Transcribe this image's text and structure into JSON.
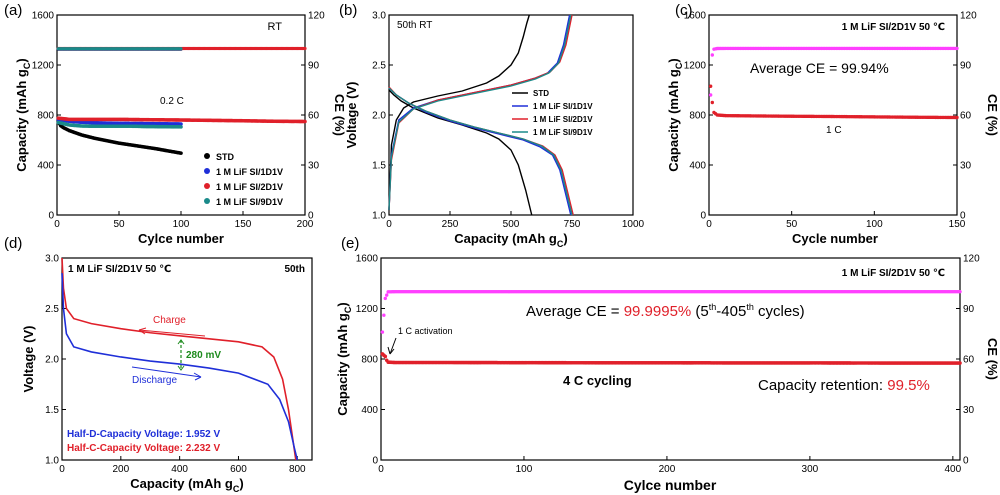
{
  "figure": {
    "panel_labels": [
      "(a)",
      "(b)",
      "(c)",
      "(d)",
      "(e)"
    ],
    "colors": {
      "STD": "#000000",
      "1D1V": "#1f2fd8",
      "2D1V": "#e0202a",
      "9D1V": "#1a8a8a",
      "magenta": "#ff40ff",
      "annot_red": "#e0202a",
      "green": "#1c8a1c",
      "blue": "#1f2fd8"
    }
  },
  "chart_data": [
    {
      "panel": "a",
      "type": "scatter",
      "title": "",
      "xlabel": "Cylce number",
      "ylabel": "Capacity (mAh g",
      "ylabel_sub": "C",
      "ylabel_end": ")",
      "y2label": "CE (%)",
      "xlim": [
        0,
        200
      ],
      "ylim": [
        0,
        1600
      ],
      "y2lim": [
        0,
        120
      ],
      "xticks": [
        0,
        50,
        100,
        150,
        200
      ],
      "yticks": [
        0,
        400,
        800,
        1200,
        1600
      ],
      "y2ticks": [
        0,
        30,
        60,
        90,
        120
      ],
      "annotations": [
        {
          "text": "RT"
        },
        {
          "text": "0.2 C"
        }
      ],
      "legend_position": "lower-right",
      "series": [
        {
          "name": "STD",
          "kind": "capacity",
          "x": [
            1,
            2,
            3,
            5,
            10,
            20,
            30,
            40,
            50,
            60,
            70,
            80,
            90,
            100
          ],
          "values": [
            760,
            730,
            715,
            700,
            675,
            640,
            615,
            595,
            575,
            560,
            545,
            530,
            512,
            495
          ]
        },
        {
          "name": "1 M LiF SI/1D1V",
          "kind": "capacity",
          "x": [
            1,
            10,
            20,
            30,
            40,
            50,
            60,
            70,
            80,
            90,
            100
          ],
          "values": [
            765,
            750,
            742,
            738,
            735,
            733,
            732,
            731,
            730,
            729,
            728
          ]
        },
        {
          "name": "1 M LiF SI/2D1V",
          "kind": "capacity",
          "x": [
            1,
            10,
            25,
            50,
            75,
            100,
            125,
            150,
            175,
            200
          ],
          "values": [
            775,
            765,
            765,
            765,
            762,
            760,
            757,
            754,
            750,
            748
          ]
        },
        {
          "name": "1 M LiF SI/9D1V",
          "kind": "capacity",
          "x": [
            1,
            10,
            20,
            30,
            40,
            50,
            60,
            70,
            80,
            90,
            100
          ],
          "values": [
            740,
            720,
            712,
            710,
            710,
            710,
            710,
            708,
            707,
            706,
            705
          ]
        },
        {
          "name": "STD",
          "kind": "ce",
          "x": [
            1,
            100
          ],
          "values": [
            99.5,
            99.5
          ]
        },
        {
          "name": "1 M LiF SI/1D1V",
          "kind": "ce",
          "x": [
            1,
            100
          ],
          "values": [
            99.7,
            99.7
          ]
        },
        {
          "name": "1 M LiF SI/2D1V",
          "kind": "ce",
          "x": [
            1,
            200
          ],
          "values": [
            99.9,
            99.9
          ]
        },
        {
          "name": "1 M LiF SI/9D1V",
          "kind": "ce",
          "x": [
            1,
            100
          ],
          "values": [
            99.8,
            99.8
          ]
        }
      ]
    },
    {
      "panel": "b",
      "type": "line",
      "title": "",
      "xlabel": "Capacity (mAh g",
      "xlabel_sub": "C",
      "xlabel_end": ")",
      "ylabel": "Voltage (V)",
      "xlim": [
        0,
        1000
      ],
      "ylim": [
        1.0,
        3.0
      ],
      "xticks": [
        0,
        250,
        500,
        750,
        1000
      ],
      "yticks": [
        1.0,
        1.5,
        2.0,
        2.5,
        3.0
      ],
      "annotations": [
        {
          "text": "50th   RT"
        }
      ],
      "legend_position": "lower-right",
      "series": [
        {
          "name": "STD",
          "charge": {
            "x": [
              0,
              10,
              30,
              60,
              100,
              200,
              300,
              400,
              450,
              500,
              530,
              550,
              565,
              575
            ],
            "y": [
              1.05,
              1.7,
              1.95,
              2.07,
              2.13,
              2.19,
              2.24,
              2.32,
              2.39,
              2.5,
              2.62,
              2.78,
              2.92,
              3.0
            ]
          },
          "discharge": {
            "x": [
              0,
              20,
              50,
              100,
              200,
              300,
              400,
              450,
              500,
              530,
              560,
              585
            ],
            "y": [
              2.25,
              2.2,
              2.14,
              2.07,
              1.97,
              1.9,
              1.82,
              1.76,
              1.65,
              1.5,
              1.25,
              1.0
            ]
          }
        },
        {
          "name": "1 M LiF SI/1D1V",
          "charge": {
            "x": [
              0,
              10,
              40,
              100,
              200,
              300,
              400,
              500,
              600,
              650,
              690,
              715,
              730,
              740
            ],
            "y": [
              1.05,
              1.6,
              1.95,
              2.07,
              2.15,
              2.2,
              2.25,
              2.3,
              2.37,
              2.42,
              2.52,
              2.7,
              2.88,
              3.0
            ]
          },
          "discharge": {
            "x": [
              0,
              30,
              80,
              150,
              250,
              350,
              450,
              550,
              620,
              670,
              700,
              720,
              745
            ],
            "y": [
              2.27,
              2.2,
              2.12,
              2.03,
              1.94,
              1.87,
              1.81,
              1.75,
              1.68,
              1.6,
              1.45,
              1.25,
              1.0
            ]
          }
        },
        {
          "name": "1 M LiF SI/2D1V",
          "charge": {
            "x": [
              0,
              10,
              40,
              100,
              200,
              300,
              400,
              500,
              600,
              660,
              700,
              725,
              740,
              750
            ],
            "y": [
              1.05,
              1.55,
              1.92,
              2.06,
              2.15,
              2.2,
              2.25,
              2.3,
              2.37,
              2.43,
              2.53,
              2.7,
              2.88,
              3.0
            ]
          },
          "discharge": {
            "x": [
              0,
              30,
              80,
              150,
              250,
              350,
              450,
              550,
              630,
              680,
              710,
              730,
              755
            ],
            "y": [
              2.28,
              2.2,
              2.12,
              2.04,
              1.95,
              1.88,
              1.82,
              1.76,
              1.69,
              1.6,
              1.45,
              1.25,
              1.0
            ]
          }
        },
        {
          "name": "1 M LiF SI/9D1V",
          "charge": {
            "x": [
              0,
              10,
              40,
              100,
              200,
              300,
              400,
              500,
              600,
              655,
              695,
              720,
              735,
              745
            ],
            "y": [
              1.05,
              1.58,
              1.93,
              2.06,
              2.14,
              2.19,
              2.24,
              2.29,
              2.36,
              2.42,
              2.52,
              2.7,
              2.88,
              3.0
            ]
          },
          "discharge": {
            "x": [
              0,
              30,
              80,
              150,
              250,
              350,
              450,
              550,
              625,
              675,
              705,
              725,
              750
            ],
            "y": [
              2.27,
              2.2,
              2.12,
              2.04,
              1.95,
              1.88,
              1.82,
              1.76,
              1.69,
              1.6,
              1.45,
              1.25,
              1.0
            ]
          }
        }
      ]
    },
    {
      "panel": "c",
      "type": "scatter",
      "title": "",
      "xlabel": "Cycle number",
      "ylabel": "Capacity (mAh g",
      "ylabel_sub": "C",
      "ylabel_end": ")",
      "y2label": "CE (%)",
      "xlim": [
        0,
        150
      ],
      "ylim": [
        0,
        1600
      ],
      "y2lim": [
        0,
        120
      ],
      "xticks": [
        0,
        50,
        100,
        150
      ],
      "yticks": [
        0,
        400,
        800,
        1200,
        1600
      ],
      "y2ticks": [
        0,
        30,
        60,
        90,
        120
      ],
      "annotations": [
        {
          "text": "1 M LiF SI/2D1V  50 ℃"
        },
        {
          "text": "Average CE = 99.94%"
        },
        {
          "text": "1 C"
        }
      ],
      "series": [
        {
          "name": "capacity",
          "x": [
            1,
            2,
            3,
            5,
            10,
            25,
            50,
            75,
            100,
            125,
            150
          ],
          "values": [
            1030,
            900,
            820,
            800,
            795,
            793,
            790,
            788,
            785,
            782,
            780
          ]
        },
        {
          "name": "CE",
          "x": [
            1,
            2,
            3,
            5,
            10,
            25,
            50,
            75,
            100,
            125,
            150
          ],
          "values": [
            72,
            96,
            99.5,
            99.9,
            99.94,
            99.94,
            99.94,
            99.94,
            99.94,
            99.94,
            99.94
          ]
        }
      ]
    },
    {
      "panel": "d",
      "type": "line",
      "title": "",
      "xlabel": "Capacity (mAh g",
      "xlabel_sub": "C",
      "xlabel_end": ")",
      "ylabel": "Voltage (V)",
      "xlim": [
        0,
        850
      ],
      "ylim": [
        1.0,
        3.0
      ],
      "xticks": [
        0,
        200,
        400,
        600,
        800
      ],
      "yticks": [
        1.0,
        1.5,
        2.0,
        2.5,
        3.0
      ],
      "annotations": [
        {
          "text": "1 M LiF SI/2D1V  50 ℃"
        },
        {
          "text": "50th"
        },
        {
          "text": "Charge"
        },
        {
          "text": "Discharge"
        },
        {
          "text": "280 mV"
        },
        {
          "text": "Half-D-Capacity Voltage: 1.952 V"
        },
        {
          "text": "Half-C-Capacity Voltage: 2.232 V"
        }
      ],
      "series": [
        {
          "name": "Charge",
          "x": [
            0,
            5,
            15,
            40,
            100,
            200,
            300,
            400,
            500,
            600,
            680,
            720,
            750,
            770,
            785,
            795
          ],
          "y": [
            3.0,
            2.7,
            2.5,
            2.4,
            2.35,
            2.3,
            2.26,
            2.23,
            2.2,
            2.17,
            2.12,
            2.02,
            1.8,
            1.5,
            1.2,
            1.0
          ]
        },
        {
          "name": "Discharge",
          "x": [
            0,
            5,
            15,
            40,
            100,
            200,
            300,
            400,
            500,
            600,
            700,
            740,
            770,
            790,
            800
          ],
          "y": [
            2.85,
            2.5,
            2.25,
            2.12,
            2.07,
            2.02,
            1.98,
            1.95,
            1.91,
            1.86,
            1.75,
            1.6,
            1.38,
            1.12,
            1.0
          ]
        }
      ]
    },
    {
      "panel": "e",
      "type": "scatter",
      "title": "",
      "xlabel": "Cylce number",
      "ylabel": "Capacity (mAh g",
      "ylabel_sub": "C",
      "ylabel_end": ")",
      "y2label": "CE (%)",
      "xlim": [
        0,
        405
      ],
      "ylim": [
        0,
        1600
      ],
      "y2lim": [
        0,
        120
      ],
      "xticks": [
        0,
        100,
        200,
        300,
        400
      ],
      "yticks": [
        0,
        400,
        800,
        1200,
        1600
      ],
      "y2ticks": [
        0,
        30,
        60,
        90,
        120
      ],
      "annotations": [
        {
          "text": "1 M LiF SI/2D1V  50 ℃"
        },
        {
          "text": "Average CE = ",
          "value": "99.9995%",
          "tail": " (5",
          "sup1": "th",
          "mid": "-405",
          "sup2": "th",
          "end": " cycles)"
        },
        {
          "text": "1 C activation"
        },
        {
          "text": "4 C cycling"
        },
        {
          "text": "Capacity retention: ",
          "value": "99.5%"
        }
      ],
      "series": [
        {
          "name": "capacity",
          "x": [
            1,
            2,
            3,
            4,
            5,
            10,
            50,
            100,
            150,
            200,
            250,
            300,
            350,
            400,
            405
          ],
          "values": [
            840,
            830,
            820,
            790,
            775,
            772,
            772,
            771,
            770,
            770,
            769,
            769,
            768,
            768,
            768
          ]
        },
        {
          "name": "CE",
          "x": [
            1,
            2,
            3,
            5,
            10,
            50,
            100,
            200,
            300,
            405
          ],
          "values": [
            76,
            86,
            96,
            99.9,
            99.9995,
            99.9995,
            99.9995,
            99.9995,
            99.9995,
            99.9995
          ]
        }
      ]
    }
  ]
}
